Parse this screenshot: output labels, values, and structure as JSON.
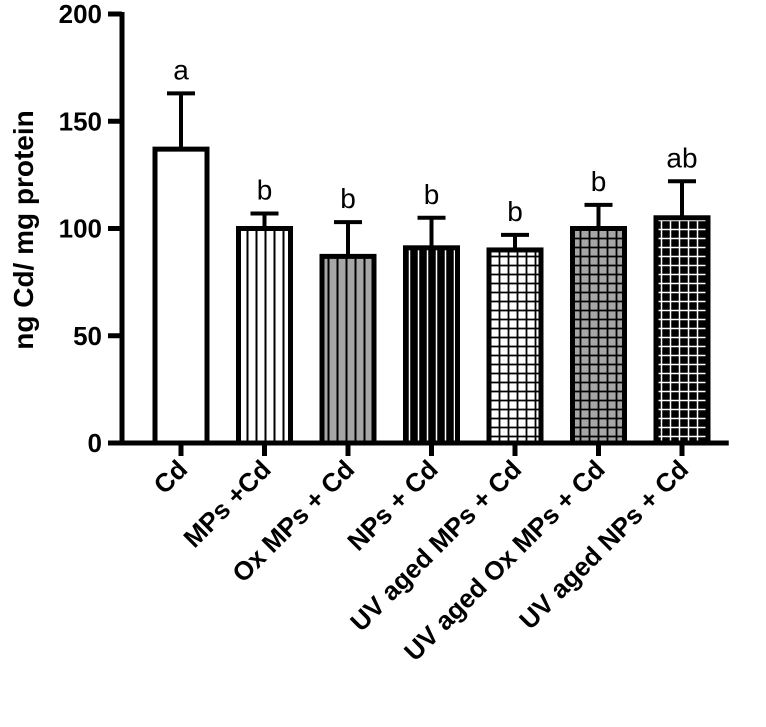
{
  "chart_data": {
    "type": "bar",
    "title": "",
    "xlabel": "",
    "ylabel": "ng Cd/ mg protein",
    "ylim": [
      0,
      200
    ],
    "yticks": [
      0,
      50,
      100,
      150,
      200
    ],
    "categories": [
      "Cd",
      "MPs +Cd",
      "Ox MPs + Cd",
      "NPs + Cd",
      "UV aged MPs + Cd",
      "UV aged Ox MPs + Cd",
      "UV aged NPs + Cd"
    ],
    "values": [
      137,
      100,
      87,
      91,
      90,
      100,
      105
    ],
    "errors": [
      26,
      7,
      16,
      14,
      7,
      11,
      17
    ],
    "significance": [
      "a",
      "b",
      "b",
      "b",
      "b",
      "b",
      "ab"
    ],
    "bar_fills": [
      "white",
      "vertical-lines-white",
      "vertical-lines-grey",
      "vertical-lines-black",
      "grid-white",
      "grid-grey",
      "grid-black"
    ],
    "colors": {
      "axis": "#000000",
      "grey": "#a6a6a6",
      "black": "#000000",
      "white": "#ffffff"
    }
  }
}
